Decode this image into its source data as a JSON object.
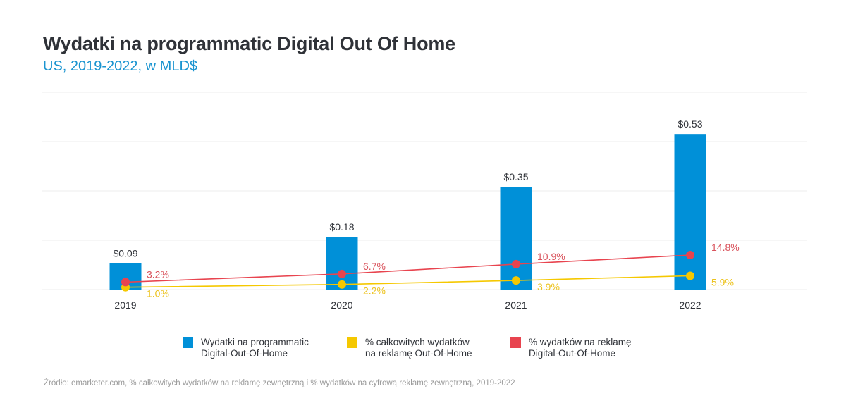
{
  "header": {
    "title": "Wydatki na programmatic Digital Out Of Home",
    "subtitle": "US, 2019-2022, w MLD$"
  },
  "colors": {
    "bar": "#0090d8",
    "yellow": "#f5c800",
    "red": "#e8444f",
    "red_label": "#d9535c",
    "yellow_label": "#ecc21c",
    "grid": "#eeeeee",
    "text": "#2f3238",
    "subtitle": "#1a94d0"
  },
  "chart_data": {
    "type": "bar",
    "title": "Wydatki na programmatic Digital Out Of Home",
    "subtitle": "US, 2019-2022, w MLD$",
    "categories": [
      "2019",
      "2020",
      "2021",
      "2022"
    ],
    "xlabel": "",
    "ylabel": "",
    "ylim": [
      0,
      0.6
    ],
    "grid": true,
    "legend_position": "bottom",
    "series": [
      {
        "name": "Wydatki na programmatic Digital-Out-Of-Home",
        "type": "bar",
        "values": [
          0.09,
          0.18,
          0.35,
          0.53
        ],
        "labels": [
          "$0.09",
          "$0.18",
          "$0.35",
          "$0.53"
        ]
      },
      {
        "name": "% całkowitych wydatków na reklamę Out-Of-Home",
        "type": "line",
        "values": [
          1.0,
          2.2,
          3.9,
          5.9
        ],
        "labels": [
          "1.0%",
          "2.2%",
          "3.9%",
          "5.9%"
        ]
      },
      {
        "name": "% wydatków na reklamę Digital-Out-Of-Home",
        "type": "line",
        "values": [
          3.2,
          6.7,
          10.9,
          14.8
        ],
        "labels": [
          "3.2%",
          "6.7%",
          "10.9%",
          "14.8%"
        ]
      }
    ]
  },
  "legend": [
    {
      "line1": "Wydatki na programmatic",
      "line2": "Digital-Out-Of-Home",
      "color": "#0090d8"
    },
    {
      "line1": "% całkowitych wydatków",
      "line2": "na reklamę Out-Of-Home",
      "color": "#f5c800"
    },
    {
      "line1": "% wydatków na reklamę",
      "line2": "Digital-Out-Of-Home",
      "color": "#e8444f"
    }
  ],
  "source": "Źródło: emarketer.com, % całkowitych wydatków na reklamę zewnętrzną i % wydatków na cyfrową reklamę zewnętrzną, 2019-2022"
}
